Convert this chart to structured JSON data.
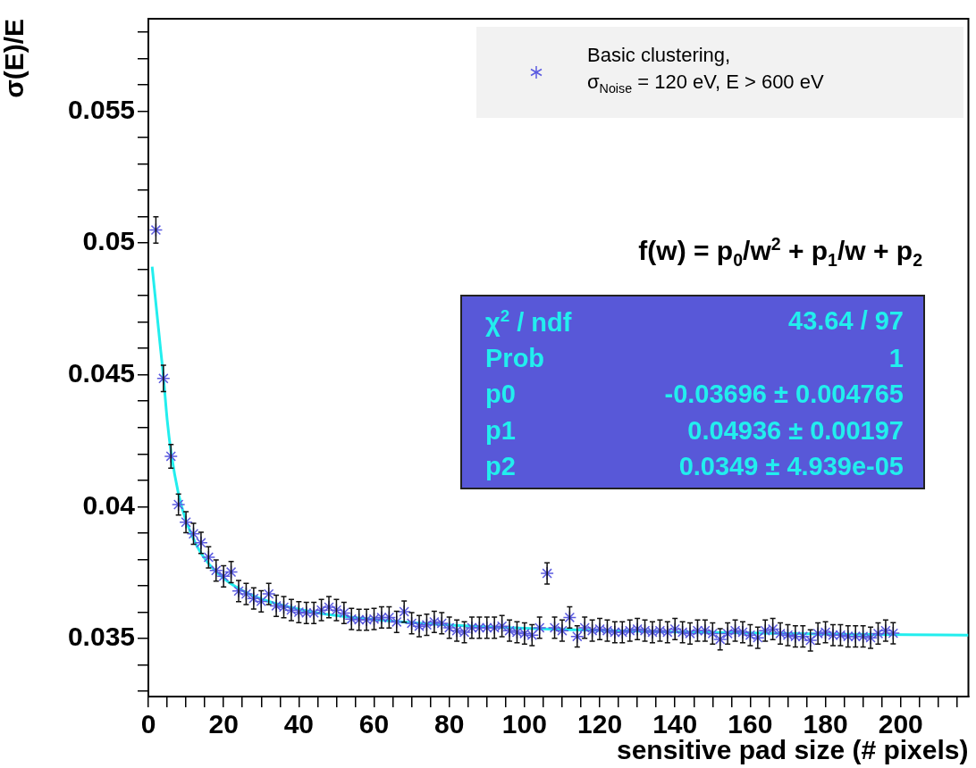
{
  "chart_data": {
    "type": "scatter",
    "xlabel": "sensitive pad size (# pixels)",
    "ylabel": "σ(E)/E",
    "x": [
      2,
      4,
      6,
      8,
      10,
      12,
      14,
      16,
      18,
      20,
      22,
      24,
      26,
      28,
      30,
      32,
      34,
      36,
      38,
      40,
      42,
      44,
      46,
      48,
      50,
      52,
      54,
      56,
      58,
      60,
      62,
      64,
      66,
      68,
      70,
      72,
      74,
      76,
      78,
      80,
      82,
      84,
      86,
      88,
      90,
      92,
      94,
      96,
      98,
      100,
      102,
      104,
      106,
      108,
      110,
      112,
      114,
      116,
      118,
      120,
      122,
      124,
      126,
      128,
      130,
      132,
      134,
      136,
      138,
      140,
      142,
      144,
      146,
      148,
      150,
      152,
      154,
      156,
      158,
      160,
      162,
      164,
      166,
      168,
      170,
      172,
      174,
      176,
      178,
      180,
      182,
      184,
      186,
      188,
      190,
      192,
      194,
      196,
      198
    ],
    "series": [
      {
        "name": "Basic clustering,\nσ$_{Noise}$ = 120 eV, E > 600 eV",
        "color": "#5a5ae0",
        "marker": "cross",
        "values": [
          0.05049,
          0.04486,
          0.04191,
          0.04008,
          0.03941,
          0.03897,
          0.03863,
          0.03808,
          0.03758,
          0.03736,
          0.03752,
          0.0368,
          0.03669,
          0.03652,
          0.03641,
          0.03669,
          0.03624,
          0.03619,
          0.03608,
          0.036,
          0.03597,
          0.03597,
          0.03608,
          0.03619,
          0.03608,
          0.03597,
          0.03574,
          0.03571,
          0.03571,
          0.03574,
          0.0358,
          0.0358,
          0.03563,
          0.03602,
          0.03558,
          0.03547,
          0.03552,
          0.03563,
          0.03558,
          0.03541,
          0.0353,
          0.03524,
          0.03541,
          0.03541,
          0.03541,
          0.03541,
          0.03547,
          0.0353,
          0.03524,
          0.03519,
          0.03513,
          0.03541,
          0.03747,
          0.03541,
          0.0353,
          0.0358,
          0.03508,
          0.03541,
          0.0353,
          0.03536,
          0.0353,
          0.03524,
          0.03524,
          0.0353,
          0.03536,
          0.0353,
          0.03524,
          0.0353,
          0.03524,
          0.03536,
          0.03524,
          0.03519,
          0.0353,
          0.0353,
          0.03519,
          0.03497,
          0.03519,
          0.0353,
          0.03524,
          0.03513,
          0.03503,
          0.0353,
          0.03536,
          0.03519,
          0.03513,
          0.03508,
          0.03508,
          0.03493,
          0.03519,
          0.03524,
          0.03513,
          0.03513,
          0.03508,
          0.03508,
          0.03508,
          0.03503,
          0.03519,
          0.0353,
          0.0352
        ],
        "errors": [
          0.0005,
          0.0005,
          0.00045,
          0.0004,
          0.0004,
          0.0004,
          0.0004,
          0.0004,
          0.0004,
          0.0004,
          0.0004,
          0.0004,
          0.0004,
          0.0004,
          0.0004,
          0.0004,
          0.0004,
          0.0004,
          0.0004,
          0.0004,
          0.0004,
          0.0004,
          0.0004,
          0.0004,
          0.0004,
          0.0004,
          0.0004,
          0.0004,
          0.0004,
          0.0004,
          0.0004,
          0.0004,
          0.0004,
          0.0004,
          0.0004,
          0.0004,
          0.0004,
          0.0004,
          0.0004,
          0.0004,
          0.0004,
          0.0004,
          0.0004,
          0.0004,
          0.0004,
          0.0004,
          0.0004,
          0.0004,
          0.0004,
          0.0004,
          0.0004,
          0.0004,
          0.0004,
          0.0004,
          0.0004,
          0.0004,
          0.0004,
          0.0004,
          0.0004,
          0.0004,
          0.0004,
          0.0004,
          0.0004,
          0.0004,
          0.0004,
          0.0004,
          0.0004,
          0.0004,
          0.0004,
          0.0004,
          0.0004,
          0.0004,
          0.0004,
          0.0004,
          0.0004,
          0.0004,
          0.0004,
          0.0004,
          0.0004,
          0.0004,
          0.0004,
          0.0004,
          0.0004,
          0.0004,
          0.0004,
          0.0004,
          0.0004,
          0.0004,
          0.0004,
          0.0004,
          0.0004,
          0.0004,
          0.0004,
          0.0004,
          0.0004,
          0.0004,
          0.0004,
          0.0004,
          0.0004
        ]
      },
      {
        "type": "line",
        "color": "#22eeee",
        "marker": "none",
        "x": [
          1,
          3.3,
          4,
          5,
          6,
          8,
          10,
          13,
          16,
          20,
          25,
          30,
          40,
          50,
          70,
          100,
          140,
          180,
          218
        ],
        "values": [
          0.0491,
          0.0459,
          0.04493,
          0.04329,
          0.0421,
          0.04049,
          0.03947,
          0.03848,
          0.03784,
          0.03728,
          0.03682,
          0.0365,
          0.03611,
          0.03587,
          0.0356,
          0.03539,
          0.03525,
          0.03517,
          0.03513
        ]
      }
    ],
    "xlim": [
      0,
      218
    ],
    "xticks": [
      0,
      {
        "value": 5,
        "label": null
      },
      {
        "value": 10,
        "label": null
      },
      {
        "value": 15,
        "label": null
      },
      20,
      {
        "value": 25,
        "label": null
      },
      {
        "value": 30,
        "label": null
      },
      {
        "value": 35,
        "label": null
      },
      40,
      {
        "value": 45,
        "label": null
      },
      {
        "value": 50,
        "label": null
      },
      {
        "value": 55,
        "label": null
      },
      60,
      {
        "value": 65,
        "label": null
      },
      {
        "value": 70,
        "label": null
      },
      {
        "value": 75,
        "label": null
      },
      80,
      {
        "value": 85,
        "label": null
      },
      {
        "value": 90,
        "label": null
      },
      {
        "value": 95,
        "label": null
      },
      100,
      {
        "value": 105,
        "label": null
      },
      {
        "value": 110,
        "label": null
      },
      {
        "value": 115,
        "label": null
      },
      120,
      {
        "value": 125,
        "label": null
      },
      {
        "value": 130,
        "label": null
      },
      {
        "value": 135,
        "label": null
      },
      140,
      {
        "value": 145,
        "label": null
      },
      {
        "value": 150,
        "label": null
      },
      {
        "value": 155,
        "label": null
      },
      160,
      {
        "value": 165,
        "label": null
      },
      {
        "value": 170,
        "label": null
      },
      {
        "value": 175,
        "label": null
      },
      180,
      {
        "value": 185,
        "label": null
      },
      {
        "value": 190,
        "label": null
      },
      {
        "value": 195,
        "label": null
      },
      200,
      {
        "value": 205,
        "label": null
      },
      {
        "value": 210,
        "label": null
      },
      {
        "value": 215,
        "label": null
      }
    ],
    "ylim": [
      0.0328,
      0.0585
    ],
    "yticks": [
      {
        "value": 0.033,
        "label": null
      },
      {
        "value": 0.034,
        "label": null
      },
      0.035,
      {
        "value": 0.036,
        "label": null
      },
      {
        "value": 0.037,
        "label": null
      },
      {
        "value": 0.038,
        "label": null
      },
      {
        "value": 0.039,
        "label": null
      },
      0.04,
      {
        "value": 0.041,
        "label": null
      },
      {
        "value": 0.042,
        "label": null
      },
      {
        "value": 0.043,
        "label": null
      },
      {
        "value": 0.044,
        "label": null
      },
      0.045,
      {
        "value": 0.046,
        "label": null
      },
      {
        "value": 0.047,
        "label": null
      },
      {
        "value": 0.048,
        "label": null
      },
      {
        "value": 0.049,
        "label": null
      },
      0.05,
      {
        "value": 0.051,
        "label": null
      },
      {
        "value": 0.052,
        "label": null
      },
      {
        "value": 0.053,
        "label": null
      },
      {
        "value": 0.054,
        "label": null
      },
      0.055,
      {
        "value": 0.056,
        "label": null
      },
      {
        "value": 0.057,
        "label": null
      },
      {
        "value": 0.058,
        "label": null
      }
    ],
    "grid": false,
    "legend": "top right",
    "annotations": [
      "f(w) = p$_{0}$/w$^{2}$ + p$_{1}$/w + p$_{2}$",
      "χ$^{2}$ / ndf",
      "43.64 / 97",
      "Prob",
      "1",
      "p0",
      "-0.03696 ± 0.004765",
      "p1",
      "0.04936 ± 0.00197",
      "p2",
      "0.0349 ± 4.939e-05"
    ]
  }
}
